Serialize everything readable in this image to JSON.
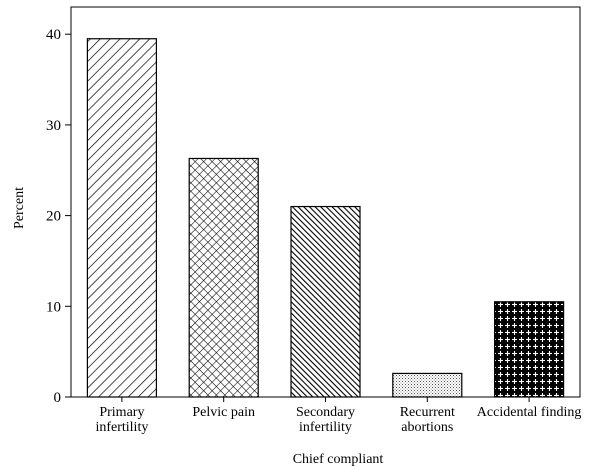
{
  "chart_data": {
    "type": "bar",
    "xlabel": "Chief compliant",
    "ylabel": "Percent",
    "ylim": [
      0,
      43
    ],
    "yticks": [
      0,
      10,
      20,
      30,
      40
    ],
    "grid": false,
    "categories": [
      {
        "label": [
          "Primary",
          "infertility"
        ],
        "value": 39.5,
        "pattern": "diagonal-hatch-light"
      },
      {
        "label": [
          "Pelvic pain"
        ],
        "value": 26.3,
        "pattern": "crosshatch"
      },
      {
        "label": [
          "Secondary",
          "infertility"
        ],
        "value": 21.0,
        "pattern": "diagonal-hatch-dense"
      },
      {
        "label": [
          "Recurrent",
          "abortions"
        ],
        "value": 2.6,
        "pattern": "fine-dots"
      },
      {
        "label": [
          "Accidental finding"
        ],
        "value": 10.5,
        "pattern": "dark-crosses"
      }
    ]
  }
}
